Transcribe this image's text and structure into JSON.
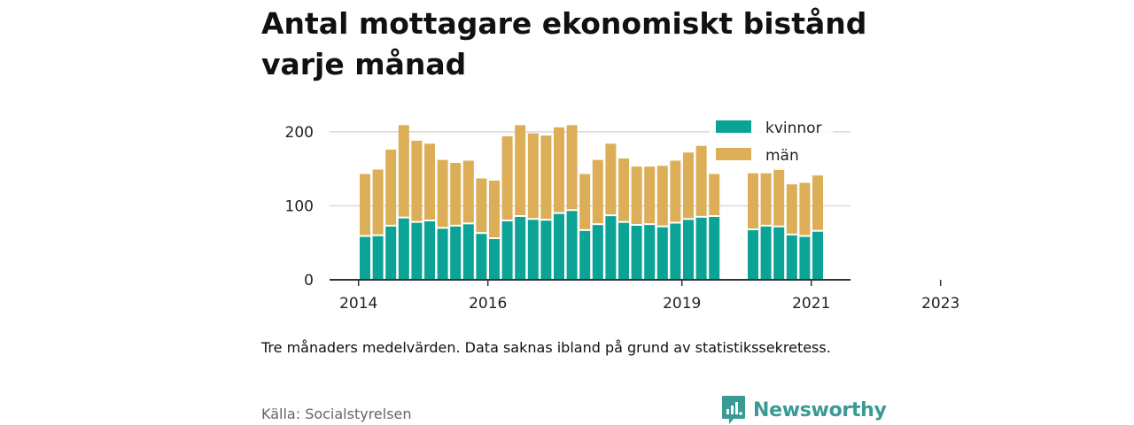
{
  "title": "Antal mottagare ekonomiskt bistånd varje månad",
  "note": "Tre månaders medelvärden. Data saknas ibland på grund av statistikssekretess.",
  "source": "Källa: Socialstyrelsen",
  "brand": {
    "name": "Newsworthy",
    "color": "#3a9b94",
    "icon": "newsworthy-logo-icon"
  },
  "chart_data": {
    "type": "bar",
    "stacked": true,
    "ylim": [
      0,
      225
    ],
    "yticks": [
      0,
      100,
      200
    ],
    "xticks": [
      "2014",
      "2016",
      "2019",
      "2021",
      "2023"
    ],
    "xtick_positions": [
      0,
      10,
      25,
      35,
      45
    ],
    "grid": true,
    "legend_position": "top-right",
    "series": [
      {
        "name": "kvinnor",
        "color": "#0aa396",
        "values": [
          58,
          59,
          72,
          83,
          77,
          79,
          69,
          72,
          75,
          62,
          55,
          79,
          85,
          81,
          80,
          89,
          93,
          66,
          74,
          86,
          77,
          73,
          74,
          71,
          76,
          81,
          84,
          85,
          null,
          null,
          67,
          72,
          71,
          60,
          58,
          65
        ]
      },
      {
        "name": "män",
        "color": "#dcae58",
        "values": [
          85,
          90,
          104,
          126,
          111,
          105,
          93,
          86,
          86,
          75,
          79,
          115,
          124,
          117,
          115,
          117,
          116,
          77,
          88,
          98,
          87,
          80,
          79,
          83,
          85,
          91,
          97,
          58,
          null,
          null,
          77,
          72,
          80,
          69,
          73,
          76
        ]
      }
    ]
  }
}
